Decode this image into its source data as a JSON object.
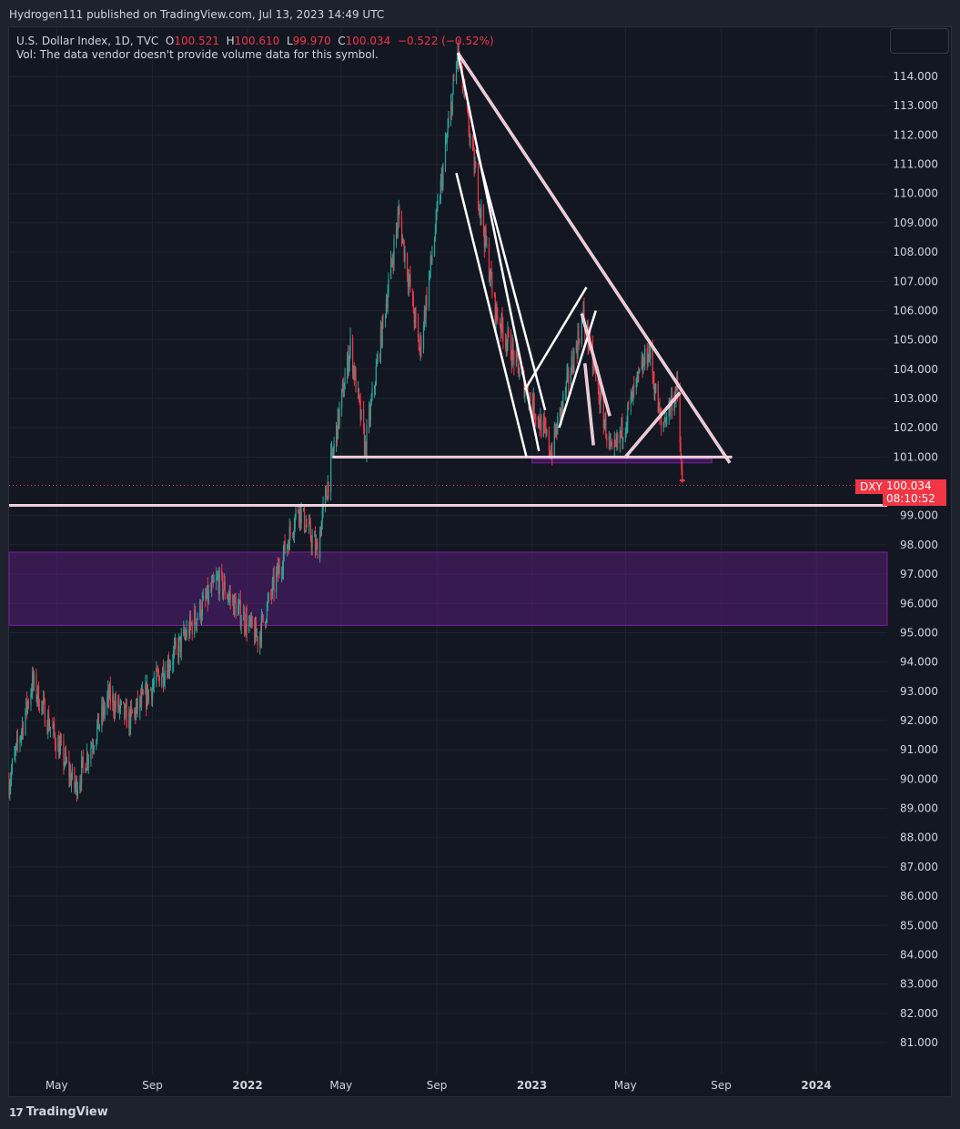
{
  "header": {
    "publisher": "Hydrogen111 published on TradingView.com, Jul 13, 2023 14:49 UTC"
  },
  "legend": {
    "symbol": "U.S. Dollar Index, 1D, TVC",
    "o_label": "O",
    "o_value": "100.521",
    "h_label": "H",
    "h_value": "100.610",
    "l_label": "L",
    "l_value": "99.970",
    "c_label": "C",
    "c_value": "100.034",
    "change": "−0.522 (−0.52%)",
    "vol_note": "Vol: The data vendor doesn't provide volume data for this symbol."
  },
  "price_tag": {
    "symbol": "DXY",
    "price": "100.034",
    "countdown": "08:10:52"
  },
  "footer": {
    "brand": "TradingView",
    "logo_mark": "17"
  },
  "colors": {
    "background": "#131722",
    "up": "#26a69a",
    "down": "#f23645",
    "trendline": "#f8bbd0",
    "white_line": "#ffffff",
    "zone": "#7b1fa2"
  },
  "chart_data": {
    "type": "candlestick",
    "title": "U.S. Dollar Index, 1D, TVC",
    "y_ticks": [
      "114.000",
      "113.000",
      "112.000",
      "111.000",
      "110.000",
      "109.000",
      "108.000",
      "107.000",
      "106.000",
      "105.000",
      "104.000",
      "103.000",
      "102.000",
      "101.000",
      "99.000",
      "98.000",
      "97.000",
      "96.000",
      "95.000",
      "94.000",
      "93.000",
      "92.000",
      "91.000",
      "90.000",
      "89.000",
      "88.000",
      "87.000",
      "86.000",
      "85.000",
      "84.000",
      "83.000",
      "82.000",
      "81.000"
    ],
    "x_ticks": [
      "May",
      "Sep",
      "2022",
      "May",
      "Sep",
      "2023",
      "May",
      "Sep",
      "2024"
    ],
    "ylim": [
      80.0,
      115.0
    ],
    "x_range": [
      "2021-03-01",
      "2024-04-01"
    ],
    "grid": true,
    "price_path": [
      [
        "2021-03-01",
        89.9
      ],
      [
        "2021-03-31",
        93.3
      ],
      [
        "2021-05-25",
        89.7
      ],
      [
        "2021-07-07",
        92.8
      ],
      [
        "2021-08-02",
        92.0
      ],
      [
        "2021-09-30",
        94.3
      ],
      [
        "2021-11-24",
        96.8
      ],
      [
        "2022-01-14",
        94.8
      ],
      [
        "2022-03-07",
        99.3
      ],
      [
        "2022-03-31",
        97.8
      ],
      [
        "2022-05-13",
        104.8
      ],
      [
        "2022-06-01",
        101.3
      ],
      [
        "2022-07-14",
        109.3
      ],
      [
        "2022-08-10",
        104.6
      ],
      [
        "2022-09-28",
        114.8
      ],
      [
        "2022-11-15",
        106.0
      ],
      [
        "2023-01-26",
        101.2
      ],
      [
        "2023-03-08",
        105.8
      ],
      [
        "2023-04-14",
        100.9
      ],
      [
        "2023-05-31",
        104.7
      ],
      [
        "2023-06-16",
        102.0
      ],
      [
        "2023-07-06",
        103.4
      ],
      [
        "2023-07-13",
        100.0
      ]
    ],
    "horizontal_levels": [
      {
        "price": 101.0,
        "from": "2022-04-20",
        "to": "2023-09-15",
        "color": "#f8bbd0"
      },
      {
        "price": 99.35,
        "from": "2021-03-01",
        "to": "2024-04-01",
        "color": "#f8bbd0"
      }
    ],
    "zones": [
      {
        "top": 97.75,
        "bottom": 95.25,
        "from": "2021-03-01",
        "to": "2024-04-01"
      },
      {
        "top": 100.93,
        "bottom": 100.8,
        "from": "2023-01-01",
        "to": "2023-08-20"
      }
    ],
    "trendlines": [
      {
        "p1": [
          "2022-09-28",
          114.8
        ],
        "p2": [
          "2023-09-12",
          100.8
        ],
        "color": "#f8bbd0"
      },
      {
        "p1": [
          "2022-09-28",
          114.8
        ],
        "p2": [
          "2023-01-10",
          101.2
        ],
        "color": "#ffffff"
      },
      {
        "p1": [
          "2022-09-26",
          110.7
        ],
        "p2": [
          "2022-12-25",
          101.0
        ],
        "color": "#ffffff"
      },
      {
        "p1": [
          "2022-10-22",
          111.5
        ],
        "p2": [
          "2023-01-18",
          102.6
        ],
        "color": "#ffffff"
      },
      {
        "p1": [
          "2022-12-23",
          103.3
        ],
        "p2": [
          "2023-03-12",
          106.8
        ],
        "color": "#ffffff"
      },
      {
        "p1": [
          "2023-02-05",
          102.0
        ],
        "p2": [
          "2023-03-24",
          106.0
        ],
        "color": "#ffffff"
      },
      {
        "p1": [
          "2023-03-06",
          105.9
        ],
        "p2": [
          "2023-04-11",
          102.4
        ],
        "color": "#f8bbd0"
      },
      {
        "p1": [
          "2023-03-21",
          101.4
        ],
        "p2": [
          "2023-03-10",
          104.2
        ],
        "color": "#f8bbd0"
      },
      {
        "p1": [
          "2023-05-01",
          101.0
        ],
        "p2": [
          "2023-07-10",
          103.2
        ],
        "color": "#f8bbd0"
      }
    ],
    "current_price": 100.034
  }
}
